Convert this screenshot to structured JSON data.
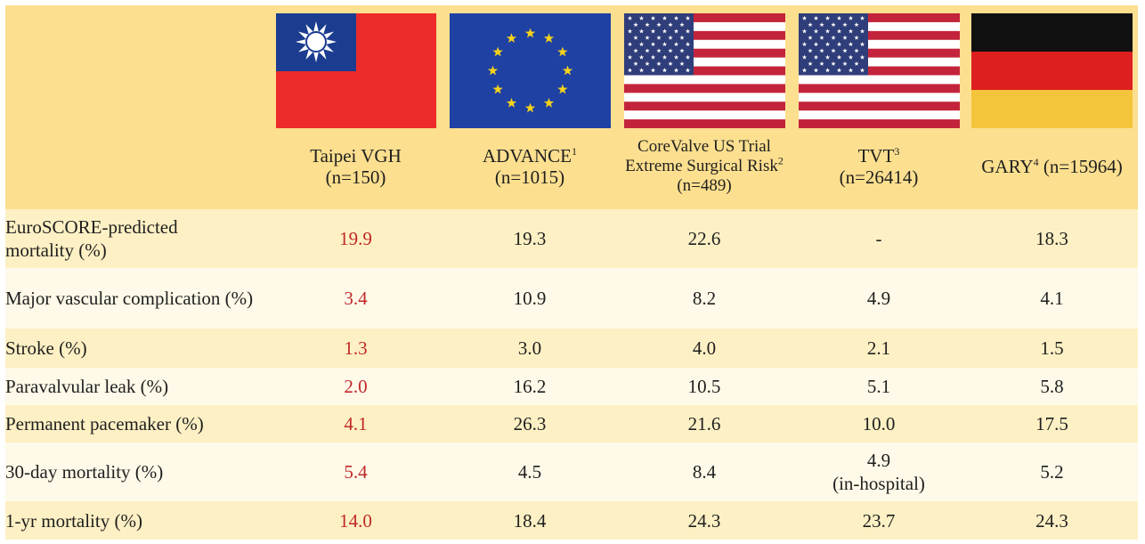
{
  "colors": {
    "header_bg": "#fcdf8f",
    "row_dark": "#fdf0c4",
    "row_light": "#fef9e8",
    "highlight_red": "#c0282a"
  },
  "columns": [
    {
      "flag": "taiwan-flag",
      "title_line1": "Taipei VGH",
      "sup": "",
      "title_line2": "(n=150)",
      "title_line3": ""
    },
    {
      "flag": "eu-flag",
      "title_line1": "ADVANCE",
      "sup": "1",
      "title_line2": "(n=1015)",
      "title_line3": ""
    },
    {
      "flag": "us-flag",
      "title_line1": "CoreValve US Trial",
      "title_line1b": "Extreme Surgical Risk",
      "sup": "2",
      "title_line2": "(n=489)"
    },
    {
      "flag": "us-flag",
      "title_line1": "TVT",
      "sup": "3",
      "title_line2": "(n=26414)",
      "title_line3": ""
    },
    {
      "flag": "germany-flag",
      "title_line1": "GARY",
      "sup": "4",
      "title_line2": "(n=15964)",
      "title_line3": ""
    }
  ],
  "rows": [
    {
      "label": "EuroSCORE-predicted mortality (%)",
      "values": [
        "19.9",
        "19.3",
        "22.6",
        "-",
        "18.3"
      ]
    },
    {
      "label": "Major vascular complication (%)",
      "values": [
        "3.4",
        "10.9",
        "8.2",
        "4.9",
        "4.1"
      ]
    },
    {
      "label": "Stroke (%)",
      "values": [
        "1.3",
        "3.0",
        "4.0",
        "2.1",
        "1.5"
      ]
    },
    {
      "label": "Paravalvular leak (%)",
      "values": [
        "2.0",
        "16.2",
        "10.5",
        "5.1",
        "5.8"
      ]
    },
    {
      "label": "Permanent pacemaker (%)",
      "values": [
        "4.1",
        "26.3",
        "21.6",
        "10.0",
        "17.5"
      ]
    },
    {
      "label": "30-day mortality (%)",
      "values": [
        "5.4",
        "4.5",
        "8.4",
        "4.9",
        "5.2"
      ],
      "note": "(in-hospital)"
    },
    {
      "label": "1-yr mortality (%)",
      "values": [
        "14.0",
        "18.4",
        "24.3",
        "23.7",
        "24.3"
      ]
    }
  ],
  "row1_label_line1": "EuroSCORE-predicted",
  "row1_label_line2": "mortality (%)"
}
